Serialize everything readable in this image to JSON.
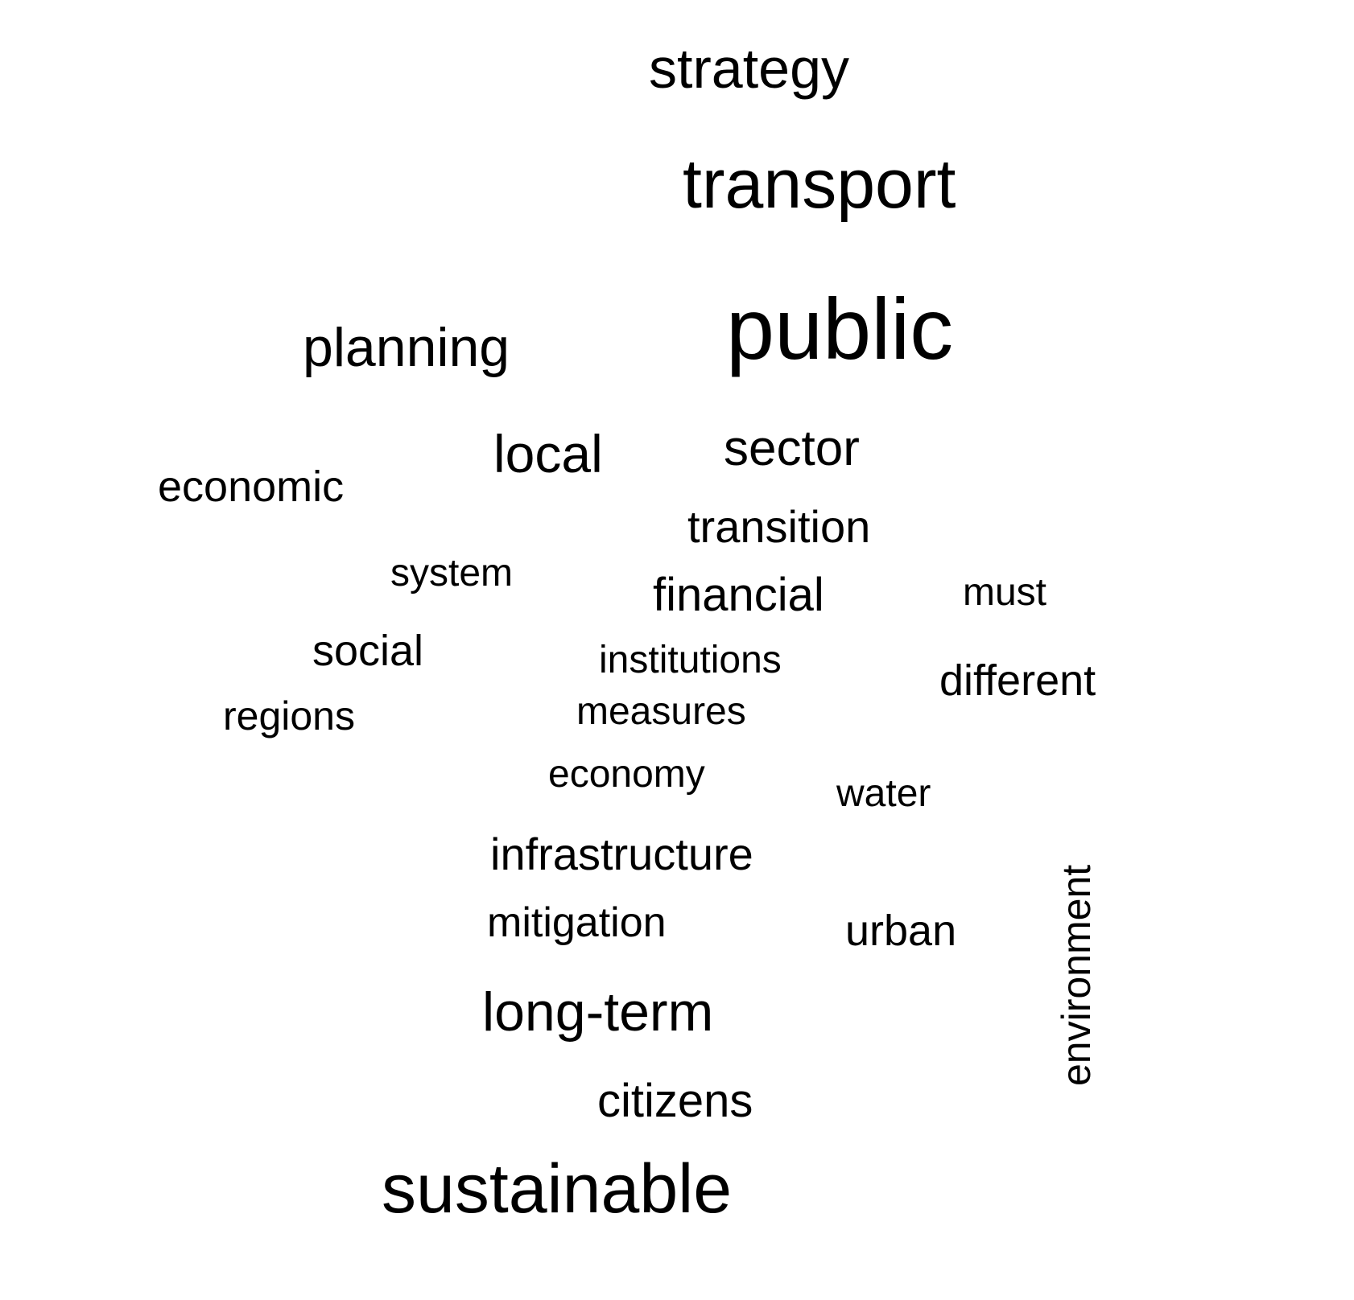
{
  "word_cloud": {
    "words": {
      "strategy": "strategy",
      "transport": "transport",
      "public": "public",
      "planning": "planning",
      "local": "local",
      "sector": "sector",
      "economic": "economic",
      "transition": "transition",
      "system": "system",
      "financial": "financial",
      "must": "must",
      "social": "social",
      "institutions": "institutions",
      "different": "different",
      "regions": "regions",
      "measures": "measures",
      "economy": "economy",
      "water": "water",
      "infrastructure": "infrastructure",
      "mitigation": "mitigation",
      "urban": "urban",
      "long_term": "long-term",
      "citizens": "citizens",
      "sustainable": "sustainable",
      "environment": "environment"
    },
    "text_color": "#000000",
    "background_color": "#ffffff"
  }
}
